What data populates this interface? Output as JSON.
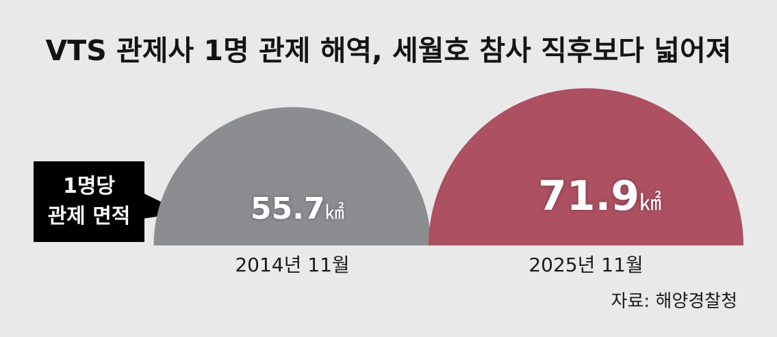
{
  "title": "VTS 관제사 1명 관제 해역, 세월호 참사 직후보다 넓어져",
  "callout": {
    "text": "1명당\n관제 면적"
  },
  "source": "자료: 해양경찰청",
  "colors": {
    "background": "#e9e9e9",
    "bar_2014": "#8c8d91",
    "bar_2025": "#ad5062",
    "callout": "#000000"
  },
  "chart_data": {
    "type": "bar",
    "categories": [
      "2014년 11월",
      "2025년 11월"
    ],
    "values": [
      55.7,
      71.9
    ],
    "value_labels": [
      "55.7",
      "71.9"
    ],
    "unit": "㎢",
    "title": "VTS 관제사 1명 관제 해역, 세월호 참사 직후보다 넓어져"
  }
}
